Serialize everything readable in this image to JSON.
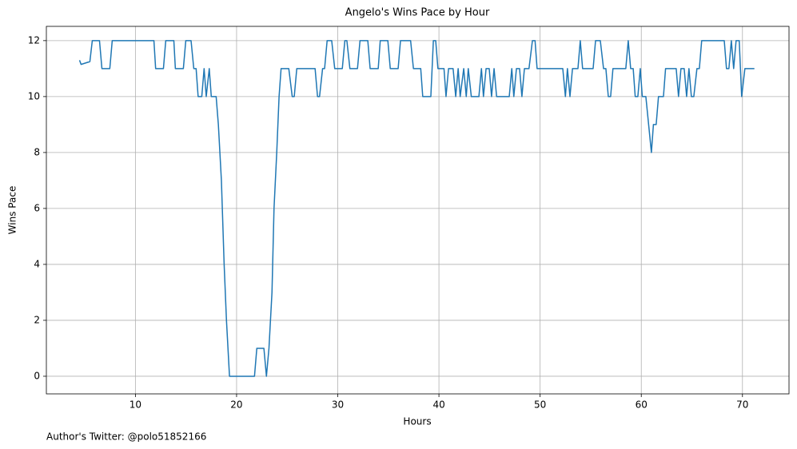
{
  "chart_data": {
    "type": "line",
    "title": "Angelo's Wins Pace by Hour",
    "x_label": "Hours",
    "y_label": "Wins Pace",
    "annotation": "Author's Twitter: @polo51852166",
    "color": "#1f77b4",
    "grid": true,
    "xlim": [
      1.2,
      74.6
    ],
    "ylim": [
      -0.63,
      12.51
    ],
    "xticks": [
      10,
      20,
      30,
      40,
      50,
      60,
      70
    ],
    "yticks": [
      0,
      2,
      4,
      6,
      8,
      10,
      12
    ],
    "x": [
      4.48,
      4.63,
      5.5,
      5.74,
      6.45,
      6.69,
      7.47,
      7.71,
      11.83,
      12.0,
      12.77,
      13.0,
      13.8,
      13.95,
      14.74,
      14.98,
      15.5,
      15.77,
      16.0,
      16.2,
      16.56,
      16.79,
      17.0,
      17.3,
      17.5,
      17.98,
      18.2,
      18.5,
      18.77,
      19.0,
      19.3,
      21.77,
      22.0,
      22.7,
      22.95,
      23.2,
      23.5,
      23.7,
      23.97,
      24.2,
      24.4,
      25.16,
      25.5,
      25.7,
      25.95,
      27.76,
      28.0,
      28.2,
      28.5,
      28.7,
      28.95,
      29.4,
      29.7,
      30.45,
      30.7,
      30.9,
      31.2,
      31.95,
      32.2,
      32.97,
      33.2,
      34.0,
      34.2,
      34.95,
      35.19,
      35.97,
      36.2,
      37.2,
      37.48,
      38.2,
      38.4,
      39.2,
      39.45,
      39.68,
      39.9,
      40.5,
      40.7,
      40.95,
      41.4,
      41.66,
      41.9,
      42.1,
      42.45,
      42.7,
      42.9,
      43.2,
      43.95,
      44.2,
      44.4,
      44.66,
      44.97,
      45.2,
      45.45,
      45.7,
      46.95,
      47.2,
      47.4,
      47.66,
      47.97,
      48.2,
      48.45,
      48.9,
      49.24,
      49.5,
      49.7,
      52.24,
      52.5,
      52.7,
      52.95,
      53.2,
      53.74,
      53.97,
      54.2,
      55.24,
      55.48,
      55.95,
      56.27,
      56.5,
      56.74,
      56.97,
      57.2,
      58.47,
      58.71,
      58.95,
      59.2,
      59.4,
      59.66,
      59.9,
      60.1,
      60.45,
      61.0,
      61.2,
      61.47,
      61.7,
      62.19,
      62.4,
      63.45,
      63.68,
      63.92,
      64.24,
      64.48,
      64.71,
      64.95,
      65.19,
      65.5,
      65.74,
      65.97,
      68.2,
      68.42,
      68.66,
      68.9,
      69.13,
      69.37,
      69.68,
      69.92,
      70.24,
      71.18
    ],
    "values": [
      11.3,
      11.15,
      11.25,
      12,
      12,
      11,
      11,
      12,
      12,
      11,
      11,
      12,
      12,
      11,
      11,
      12,
      12,
      11,
      11,
      10,
      10,
      11,
      10,
      11,
      10,
      10,
      9,
      7,
      4,
      2,
      0,
      0,
      1,
      1,
      0,
      1,
      3,
      6,
      8,
      10,
      11,
      11,
      10,
      10,
      11,
      11,
      10,
      10,
      11,
      11,
      12,
      12,
      11,
      11,
      12,
      12,
      11,
      11,
      12,
      12,
      11,
      11,
      12,
      12,
      11,
      11,
      12,
      12,
      11,
      11,
      10,
      10,
      12,
      12,
      11,
      11,
      10,
      11,
      11,
      10,
      11,
      10,
      11,
      10,
      11,
      10,
      10,
      11,
      10,
      11,
      11,
      10,
      11,
      10,
      10,
      11,
      10,
      11,
      11,
      10,
      11,
      11,
      12,
      12,
      11,
      11,
      10,
      11,
      10,
      11,
      11,
      12,
      11,
      11,
      12,
      12,
      11,
      11,
      10,
      10,
      11,
      11,
      12,
      11,
      11,
      10,
      10,
      11,
      10,
      10,
      8,
      9,
      9,
      10,
      10,
      11,
      11,
      10,
      11,
      11,
      10,
      11,
      10,
      10,
      11,
      11,
      12,
      12,
      11,
      11,
      12,
      11,
      12,
      12,
      10,
      11,
      11
    ]
  }
}
